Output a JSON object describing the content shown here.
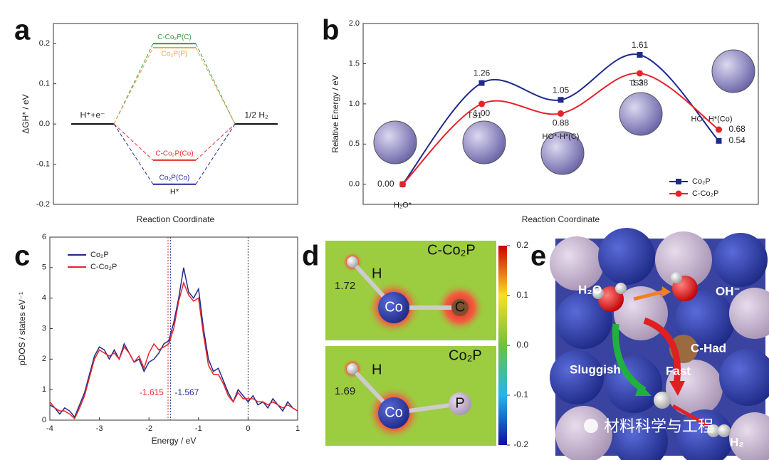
{
  "chart_data": [
    {
      "type": "energy_levels",
      "panel": "a",
      "ylabel": "ΔGH* / eV",
      "xlabel": "Reaction Coordinate",
      "ylim": [
        -0.2,
        0.25
      ],
      "yticks": [
        -0.2,
        -0.1,
        {
          "value": 0,
          "label": "0.0"
        },
        0.1,
        0.2
      ],
      "start_label": "H⁺+e⁻",
      "end_label": "1/2 H₂",
      "end_color": "#000000",
      "series": [
        {
          "name": "C-Co₂P(C)",
          "color": "#3a9a3a",
          "values": [
            0,
            0.2,
            0
          ]
        },
        {
          "name": "Co₂P(P)",
          "color": "#f0a040",
          "values": [
            0,
            0.19,
            0
          ]
        },
        {
          "name": "C-Co₂P(Co)",
          "color": "#e03030",
          "values": [
            0,
            -0.09,
            0
          ]
        },
        {
          "name": "Co₂P(Co)",
          "color": "#2a2a9a",
          "values": [
            0,
            -0.15,
            0
          ]
        }
      ],
      "annotations": [
        "H*"
      ]
    },
    {
      "type": "line",
      "panel": "b",
      "ylabel": "Relative Energy / eV",
      "xlabel": "Reaction Coordinate",
      "categories": [
        "H₂O*",
        "TS1",
        "HO*-H*(C)",
        "TS2",
        "HO*-H*(Co)"
      ],
      "ylim": [
        -0.25,
        2.0
      ],
      "yticks": [
        {
          "value": 0,
          "label": "0.0"
        },
        0.5,
        {
          "value": 1,
          "label": "1.0"
        },
        1.5,
        {
          "value": 2,
          "label": "2.0"
        }
      ],
      "legend": "lower right",
      "series": [
        {
          "name": "Co₂P",
          "color": "#1f2a8a",
          "marker": "square",
          "values": [
            0,
            1.26,
            1.05,
            1.61,
            0.54
          ],
          "value_labels": [
            "0.00",
            "1.26",
            "1.05",
            "1.61",
            "0.54"
          ]
        },
        {
          "name": "C-Co₂P",
          "color": "#e8222a",
          "marker": "circle",
          "values": [
            0,
            1.0,
            0.88,
            1.38,
            0.68
          ],
          "value_labels": [
            null,
            "1.00",
            "0.88",
            "1.38",
            "0.68"
          ]
        }
      ]
    },
    {
      "type": "line",
      "panel": "c",
      "ylabel": "pDOS / states eV⁻¹",
      "xlabel": "Energy / eV",
      "x": [
        -4.0,
        -3.9,
        -3.8,
        -3.7,
        -3.6,
        -3.5,
        -3.4,
        -3.3,
        -3.2,
        -3.1,
        -3.0,
        -2.9,
        -2.8,
        -2.7,
        -2.6,
        -2.5,
        -2.4,
        -2.3,
        -2.2,
        -2.1,
        -2.0,
        -1.9,
        -1.8,
        -1.7,
        -1.6,
        -1.5,
        -1.4,
        -1.3,
        -1.2,
        -1.1,
        -1.0,
        -0.9,
        -0.8,
        -0.7,
        -0.6,
        -0.5,
        -0.4,
        -0.3,
        -0.2,
        -0.1,
        0.0,
        0.1,
        0.2,
        0.3,
        0.4,
        0.5,
        0.6,
        0.7,
        0.8,
        0.9,
        1.0
      ],
      "xlim": [
        -4,
        1
      ],
      "xticks": [
        -4,
        -3,
        -2,
        -1,
        0,
        1
      ],
      "ylim": [
        0,
        6
      ],
      "yticks": [
        0,
        1,
        2,
        3,
        4,
        5,
        6
      ],
      "legend": "upper left",
      "series": [
        {
          "name": "Co₂P",
          "color": "#1f2a8a",
          "values": [
            0.5,
            0.4,
            0.2,
            0.4,
            0.3,
            0.1,
            0.5,
            0.9,
            1.5,
            2.1,
            2.4,
            2.3,
            2.0,
            2.3,
            2.0,
            2.5,
            2.2,
            1.9,
            2.0,
            1.6,
            1.9,
            2.0,
            2.2,
            2.5,
            2.6,
            3.2,
            4.0,
            5.0,
            4.2,
            4.0,
            4.3,
            3.0,
            2.0,
            1.6,
            1.7,
            1.3,
            0.9,
            0.6,
            1.0,
            0.8,
            0.6,
            0.8,
            0.5,
            0.6,
            0.4,
            0.7,
            0.5,
            0.3,
            0.6,
            0.4,
            0.3
          ]
        },
        {
          "name": "C-Co₂P",
          "color": "#e8222a",
          "values": [
            0.6,
            0.4,
            0.3,
            0.3,
            0.2,
            0.05,
            0.4,
            0.8,
            1.4,
            2.0,
            2.3,
            2.2,
            2.1,
            2.2,
            2.0,
            2.4,
            2.2,
            1.9,
            2.1,
            1.7,
            2.2,
            2.5,
            2.3,
            2.4,
            2.5,
            3.0,
            3.9,
            4.5,
            4.1,
            3.9,
            4.0,
            2.8,
            1.8,
            1.5,
            1.5,
            1.2,
            0.8,
            0.6,
            0.9,
            0.7,
            0.7,
            0.7,
            0.6,
            0.6,
            0.5,
            0.6,
            0.5,
            0.4,
            0.5,
            0.4,
            0.3
          ]
        }
      ],
      "vlines": [
        {
          "x": -1.615,
          "color": "#e03030"
        },
        {
          "x": -1.567,
          "color": "#2a2a9a"
        },
        {
          "x": 0,
          "color": "#333333"
        }
      ]
    }
  ],
  "panel_d": {
    "panel": "d",
    "top": {
      "title": "C-Co₂P",
      "atoms": [
        "H",
        "Co",
        "C"
      ],
      "bond_length": "1.72"
    },
    "bottom": {
      "title": "Co₂P",
      "atoms": [
        "H",
        "Co",
        "P"
      ],
      "bond_length": "1.69"
    },
    "colorbar": {
      "clim": [
        -0.2,
        0.2
      ],
      "ticks": [
        0.2,
        0.1,
        {
          "value": 0,
          "label": "0.0"
        },
        -0.1,
        -0.2
      ]
    }
  },
  "panel_e": {
    "panel": "e",
    "labels": [
      "H₂O",
      "OH⁻",
      "C-Had",
      "Sluggish",
      "Fast",
      "H₂"
    ]
  },
  "watermark": "材料科学与工程"
}
